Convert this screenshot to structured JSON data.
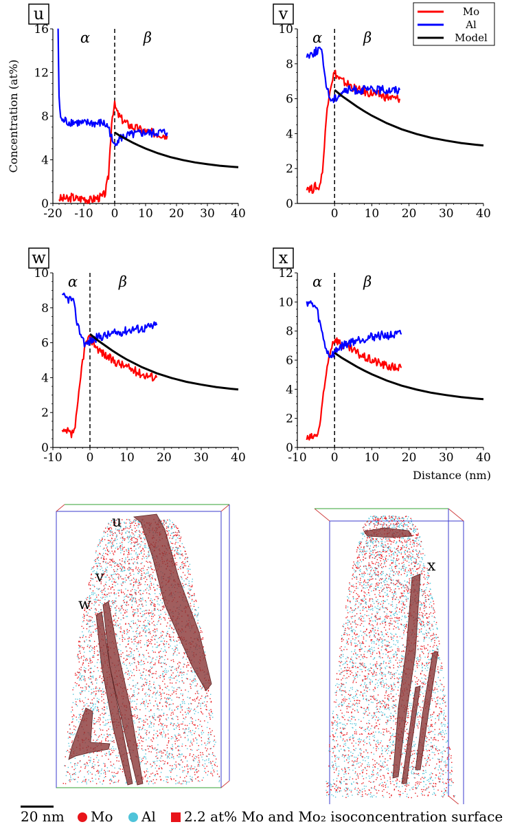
{
  "chart_data": [
    {
      "type": "line",
      "panel_label": "u",
      "ylabel": "Concentration (at%)",
      "xlim": [
        -20,
        40
      ],
      "ylim": [
        0,
        16
      ],
      "xticks": [
        -20,
        -10,
        0,
        10,
        20,
        30,
        40
      ],
      "yticks": [
        0,
        4,
        8,
        12,
        16
      ],
      "phase_labels": [
        "α",
        "β"
      ],
      "interface_x": 0,
      "series": [
        {
          "name": "Mo",
          "x": [
            -18,
            -17,
            -16,
            -15,
            -14,
            -12,
            -10,
            -8,
            -6,
            -4,
            -3,
            -2,
            -1.5,
            -1,
            -0.5,
            0,
            0.5,
            1,
            2,
            4,
            6,
            8,
            10,
            12,
            14,
            16,
            17
          ],
          "y": [
            0.5,
            0.4,
            0.5,
            0.3,
            0.6,
            0.4,
            0.5,
            0.3,
            0.5,
            0.6,
            1.0,
            2.5,
            5.0,
            7.5,
            8.5,
            9.0,
            8.6,
            8.2,
            7.8,
            7.3,
            7.0,
            6.8,
            6.6,
            6.5,
            6.4,
            6.3,
            6.2
          ]
        },
        {
          "name": "Al",
          "x": [
            -18.3,
            -18,
            -17.5,
            -17,
            -16,
            -15,
            -14,
            -12,
            -10,
            -8,
            -6,
            -4,
            -3,
            -2,
            -1,
            -0.5,
            0,
            1,
            2,
            4,
            6,
            8,
            10,
            12,
            14,
            16,
            17
          ],
          "y": [
            16,
            9.5,
            8,
            7.5,
            7.6,
            7.4,
            7.5,
            7.4,
            7.3,
            7.4,
            7.3,
            7.4,
            7.2,
            7.0,
            6.0,
            5.3,
            5.6,
            5.8,
            6.0,
            6.2,
            6.3,
            6.4,
            6.5,
            6.4,
            6.5,
            6.5,
            6.5
          ]
        },
        {
          "name": "Model",
          "x": [
            0,
            2,
            4,
            6,
            8,
            10,
            14,
            18,
            22,
            26,
            30,
            34,
            38,
            40
          ],
          "y": [
            6.5,
            6.15,
            5.85,
            5.55,
            5.28,
            5.03,
            4.6,
            4.25,
            3.98,
            3.76,
            3.6,
            3.46,
            3.36,
            3.32
          ]
        }
      ]
    },
    {
      "type": "line",
      "panel_label": "v",
      "xlim": [
        -10,
        40
      ],
      "ylim": [
        0,
        10
      ],
      "xticks": [
        0,
        10,
        20,
        30,
        40
      ],
      "yticks": [
        0,
        2,
        4,
        6,
        8,
        10
      ],
      "phase_labels": [
        "α",
        "β"
      ],
      "interface_x": 0,
      "legend": {
        "entries": [
          "Mo",
          "Al",
          "Model"
        ],
        "position": "top-right"
      },
      "series": [
        {
          "name": "Mo",
          "x": [
            -7.5,
            -7,
            -6,
            -5,
            -4.5,
            -4,
            -3.5,
            -3,
            -2.5,
            -2,
            -1.5,
            -1,
            -0.5,
            0,
            1,
            2,
            4,
            6,
            8,
            10,
            12,
            14,
            16,
            17.5
          ],
          "y": [
            1.0,
            0.9,
            0.8,
            1.0,
            0.8,
            1.1,
            1.5,
            2.5,
            4.0,
            5.5,
            6.3,
            6.8,
            7.2,
            7.5,
            7.2,
            7.0,
            6.8,
            6.5,
            6.4,
            6.3,
            6.2,
            6.1,
            6.0,
            6.0
          ]
        },
        {
          "name": "Al",
          "x": [
            -7.5,
            -7,
            -6,
            -5,
            -4,
            -3.5,
            -3,
            -2.5,
            -2,
            -1.5,
            -1,
            -0.5,
            0,
            1,
            2,
            4,
            6,
            8,
            10,
            12,
            14,
            16,
            17.5
          ],
          "y": [
            8.5,
            8.5,
            8.6,
            8.7,
            8.9,
            8.6,
            8.0,
            7.2,
            6.6,
            6.2,
            6.0,
            5.9,
            6.0,
            6.2,
            6.4,
            6.5,
            6.5,
            6.5,
            6.5,
            6.5,
            6.5,
            6.5,
            6.5
          ]
        },
        {
          "name": "Model",
          "x": [
            0,
            2,
            4,
            6,
            8,
            10,
            14,
            18,
            22,
            26,
            30,
            34,
            38,
            40
          ],
          "y": [
            6.5,
            6.15,
            5.85,
            5.55,
            5.28,
            5.03,
            4.6,
            4.25,
            3.98,
            3.76,
            3.6,
            3.46,
            3.36,
            3.32
          ]
        }
      ]
    },
    {
      "type": "line",
      "panel_label": "w",
      "xlim": [
        -10,
        40
      ],
      "ylim": [
        0,
        10
      ],
      "xticks": [
        -10,
        0,
        10,
        20,
        30,
        40
      ],
      "yticks": [
        0,
        2,
        4,
        6,
        8,
        10
      ],
      "phase_labels": [
        "α",
        "β"
      ],
      "interface_x": 0,
      "series": [
        {
          "name": "Mo",
          "x": [
            -7.5,
            -7,
            -6,
            -5,
            -4.5,
            -4,
            -3.5,
            -3,
            -2.5,
            -2,
            -1.5,
            -1,
            -0.5,
            0,
            1,
            2,
            4,
            6,
            8,
            10,
            12,
            14,
            16,
            18
          ],
          "y": [
            0.9,
            0.8,
            0.9,
            0.7,
            0.9,
            1.2,
            2.0,
            3.0,
            4.0,
            5.0,
            5.6,
            6.0,
            6.2,
            6.2,
            6.0,
            5.7,
            5.3,
            5.0,
            4.8,
            4.6,
            4.4,
            4.2,
            4.1,
            4.0
          ]
        },
        {
          "name": "Al",
          "x": [
            -7.5,
            -7,
            -6,
            -5,
            -4.5,
            -4,
            -3.5,
            -3,
            -2.5,
            -2,
            -1.5,
            -1,
            -0.5,
            0,
            1,
            2,
            4,
            6,
            8,
            10,
            12,
            14,
            16,
            18
          ],
          "y": [
            8.6,
            8.6,
            8.5,
            8.5,
            8.3,
            7.8,
            7.2,
            6.8,
            6.5,
            6.3,
            6.0,
            5.9,
            6.0,
            6.1,
            6.2,
            6.3,
            6.4,
            6.5,
            6.6,
            6.7,
            6.8,
            6.8,
            6.9,
            7.0
          ]
        },
        {
          "name": "Model",
          "x": [
            0,
            2,
            4,
            6,
            8,
            10,
            14,
            18,
            22,
            26,
            30,
            34,
            38,
            40
          ],
          "y": [
            6.5,
            6.15,
            5.85,
            5.55,
            5.28,
            5.03,
            4.6,
            4.25,
            3.98,
            3.76,
            3.6,
            3.46,
            3.36,
            3.32
          ]
        }
      ]
    },
    {
      "type": "line",
      "panel_label": "x",
      "xlabel": "Distance (nm)",
      "xlim": [
        -10,
        40
      ],
      "ylim": [
        0,
        12
      ],
      "xticks": [
        -10,
        0,
        10,
        20,
        30,
        40
      ],
      "yticks": [
        0,
        2,
        4,
        6,
        8,
        10,
        12
      ],
      "phase_labels": [
        "α",
        "β"
      ],
      "interface_x": 0,
      "series": [
        {
          "name": "Mo",
          "x": [
            -7.5,
            -7,
            -6,
            -5,
            -4.5,
            -4,
            -3.5,
            -3,
            -2.5,
            -2,
            -1.5,
            -1,
            -0.5,
            0,
            1,
            2,
            4,
            6,
            8,
            10,
            12,
            14,
            16,
            18
          ],
          "y": [
            0.6,
            0.6,
            0.7,
            0.8,
            1.0,
            1.5,
            2.5,
            3.5,
            4.5,
            5.5,
            6.3,
            6.8,
            7.2,
            7.5,
            7.3,
            7.0,
            6.8,
            6.5,
            6.2,
            6.0,
            5.8,
            5.6,
            5.5,
            5.5
          ]
        },
        {
          "name": "Al",
          "x": [
            -7.5,
            -7,
            -6,
            -5,
            -4.5,
            -4,
            -3.5,
            -3,
            -2.5,
            -2,
            -1.5,
            -1,
            -0.5,
            0,
            1,
            2,
            4,
            6,
            8,
            10,
            12,
            14,
            16,
            18
          ],
          "y": [
            10.0,
            10.0,
            9.8,
            9.6,
            9.2,
            8.6,
            8.0,
            7.5,
            7.0,
            6.6,
            6.4,
            6.3,
            6.4,
            6.5,
            6.8,
            7.0,
            7.2,
            7.4,
            7.5,
            7.6,
            7.7,
            7.7,
            7.7,
            7.8
          ]
        },
        {
          "name": "Model",
          "x": [
            0,
            2,
            4,
            6,
            8,
            10,
            14,
            18,
            22,
            26,
            30,
            34,
            38,
            40
          ],
          "y": [
            6.5,
            6.15,
            5.85,
            5.55,
            5.28,
            5.03,
            4.6,
            4.25,
            3.98,
            3.76,
            3.6,
            3.46,
            3.36,
            3.32
          ]
        }
      ]
    }
  ],
  "colors": {
    "Mo": "#ff0000",
    "Al": "#0000ff",
    "Model": "#000000",
    "al_atoms": "#4fc3d9",
    "surface": "#8c3a3a"
  },
  "reconstruction": {
    "left_labels": [
      "u",
      "v",
      "w"
    ],
    "right_labels": [
      "x"
    ]
  },
  "legend_bottom": {
    "scale": "20 nm",
    "mo": "Mo",
    "al": "Al",
    "surface": "2.2 at% Mo and Mo₂ isoconcentration surface"
  }
}
